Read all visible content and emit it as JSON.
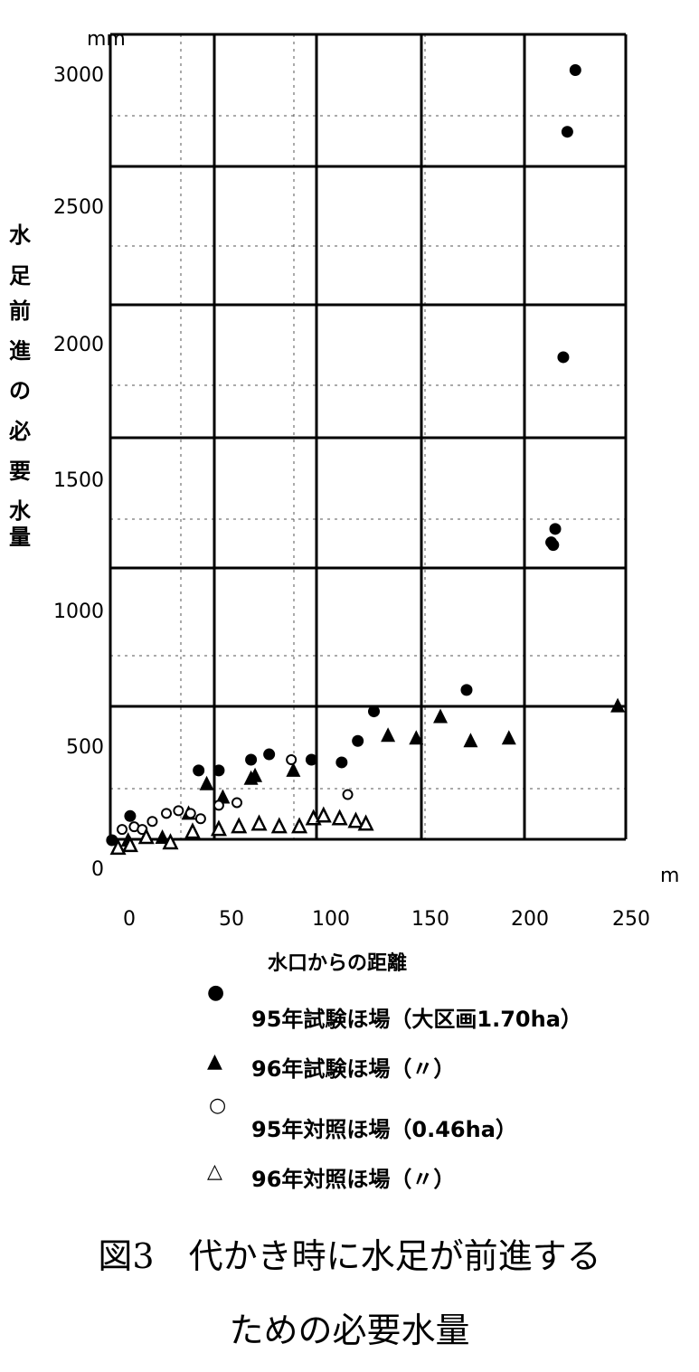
{
  "chart_data": {
    "type": "scatter",
    "caption_line1": "図3　代かき時に水足が前進する",
    "caption_line2": "ための必要水量",
    "xlabel": "水口からの距離",
    "ylabel": "水足前進の必要水量",
    "x_unit": "m",
    "y_unit": "mm",
    "xlim": [
      -5,
      250
    ],
    "ylim": [
      0,
      3000
    ],
    "xticks": [
      "0",
      "50",
      "100",
      "150",
      "200",
      "250"
    ],
    "yticks": [
      "0",
      "500",
      "1000",
      "1500",
      "2000",
      "2500",
      "3000"
    ],
    "grid": true,
    "legend_position": "bottom",
    "series": [
      {
        "name": "95年試験ほ場（大区画1.70ha）",
        "marker": "filled-circle",
        "points": [
          [
            -5,
            0
          ],
          [
            4,
            90
          ],
          [
            38,
            260
          ],
          [
            48,
            260
          ],
          [
            64,
            300
          ],
          [
            73,
            320
          ],
          [
            94,
            300
          ],
          [
            109,
            290
          ],
          [
            117,
            370
          ],
          [
            125,
            480
          ],
          [
            171,
            560
          ],
          [
            213,
            1110
          ],
          [
            215,
            1160
          ],
          [
            214,
            1100
          ],
          [
            219,
            1800
          ],
          [
            221,
            2640
          ],
          [
            225,
            2870
          ]
        ]
      },
      {
        "name": "96年試験ほ場（〃）",
        "marker": "filled-triangle",
        "points": [
          [
            3,
            0
          ],
          [
            20,
            10
          ],
          [
            33,
            100
          ],
          [
            42,
            210
          ],
          [
            50,
            160
          ],
          [
            64,
            230
          ],
          [
            66,
            240
          ],
          [
            85,
            260
          ],
          [
            132,
            390
          ],
          [
            146,
            380
          ],
          [
            158,
            460
          ],
          [
            173,
            370
          ],
          [
            192,
            380
          ],
          [
            246,
            500
          ]
        ]
      },
      {
        "name": "95年対照ほ場（0.46ha）",
        "marker": "open-circle",
        "points": [
          [
            0,
            40
          ],
          [
            6,
            50
          ],
          [
            10,
            40
          ],
          [
            15,
            70
          ],
          [
            22,
            100
          ],
          [
            28,
            110
          ],
          [
            34,
            100
          ],
          [
            39,
            80
          ],
          [
            48,
            130
          ],
          [
            57,
            140
          ],
          [
            84,
            300
          ],
          [
            112,
            170
          ]
        ]
      },
      {
        "name": "96年対照ほ場（〃）",
        "marker": "open-triangle",
        "points": [
          [
            -2,
            -30
          ],
          [
            4,
            -20
          ],
          [
            12,
            10
          ],
          [
            24,
            -10
          ],
          [
            35,
            30
          ],
          [
            48,
            40
          ],
          [
            58,
            50
          ],
          [
            68,
            60
          ],
          [
            78,
            50
          ],
          [
            88,
            50
          ],
          [
            95,
            80
          ],
          [
            100,
            90
          ],
          [
            108,
            80
          ],
          [
            116,
            70
          ],
          [
            121,
            60
          ]
        ]
      }
    ]
  }
}
